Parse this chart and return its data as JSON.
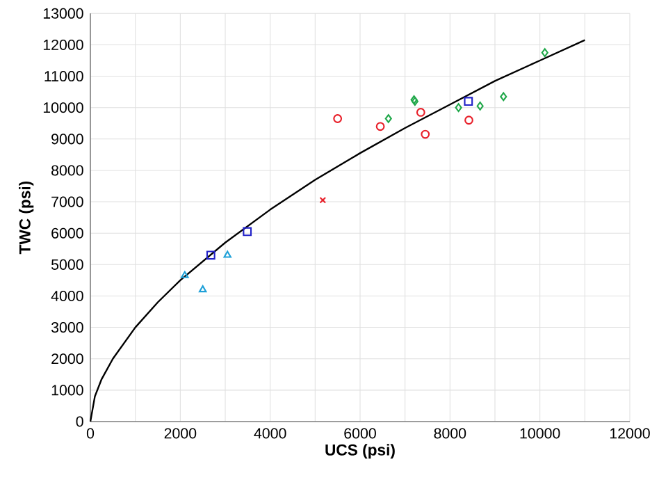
{
  "chart_data": {
    "type": "scatter",
    "xlabel": "UCS (psi)",
    "ylabel": "TWC (psi)",
    "xlim": [
      0,
      12000
    ],
    "ylim": [
      0,
      13000
    ],
    "xticks": [
      0,
      2000,
      4000,
      6000,
      8000,
      10000,
      12000
    ],
    "yticks": [
      0,
      1000,
      2000,
      3000,
      4000,
      5000,
      6000,
      7000,
      8000,
      9000,
      10000,
      11000,
      12000,
      13000
    ],
    "grid": true,
    "series": [
      {
        "marker": "circle",
        "color": "#e8202a",
        "x": [
          5500,
          6450,
          7350,
          7450,
          8420
        ],
        "values": [
          9650,
          9400,
          9850,
          9150,
          9600
        ]
      },
      {
        "marker": "diamond",
        "color": "#20a84a",
        "x": [
          6630,
          7200,
          7220,
          8190,
          8670,
          9190,
          10110
        ],
        "values": [
          9650,
          10250,
          10200,
          10000,
          10050,
          10350,
          11750
        ]
      },
      {
        "marker": "square",
        "color": "#2222c8",
        "x": [
          2680,
          3490,
          8410
        ],
        "values": [
          5300,
          6050,
          10200
        ]
      },
      {
        "marker": "triangle",
        "color": "#1ea0d8",
        "x": [
          2100,
          2500,
          3050
        ],
        "values": [
          4650,
          4200,
          5300
        ]
      },
      {
        "marker": "cross",
        "color": "#e8202a",
        "x": [
          5170
        ],
        "values": [
          7050
        ]
      },
      {
        "type": "line",
        "marker": "none",
        "color": "#000000",
        "x": [
          0,
          100,
          250,
          500,
          1000,
          1500,
          2000,
          3000,
          4000,
          5000,
          6000,
          7000,
          8000,
          9000,
          10000,
          11000
        ],
        "values": [
          0,
          800,
          1350,
          2000,
          3000,
          3800,
          4500,
          5700,
          6750,
          7700,
          8550,
          9350,
          10100,
          10850,
          11500,
          12150
        ]
      }
    ]
  }
}
